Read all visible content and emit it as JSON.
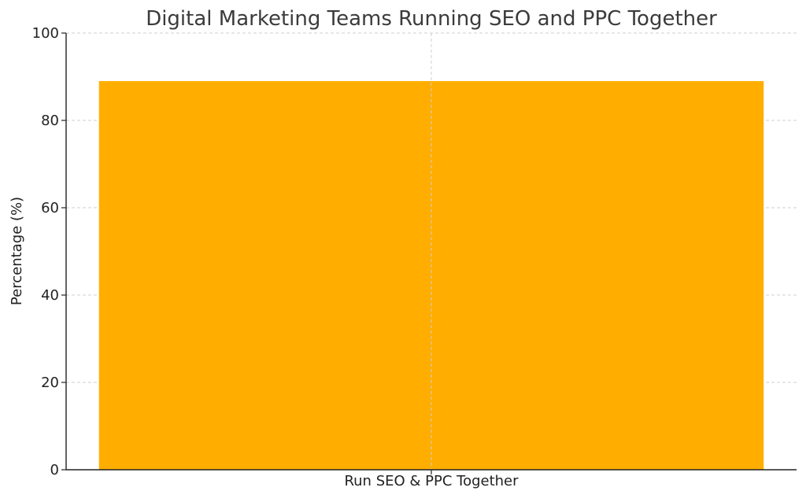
{
  "chart_data": {
    "type": "bar",
    "title": "Digital Marketing Teams Running SEO and PPC Together",
    "xlabel": "",
    "ylabel": "Percentage (%)",
    "categories": [
      "Run SEO & PPC Together"
    ],
    "values": [
      89
    ],
    "ylim": [
      0,
      100
    ],
    "yticks": [
      0,
      20,
      40,
      60,
      80,
      100
    ],
    "grid": true,
    "bar_color": "#FFAE00"
  }
}
